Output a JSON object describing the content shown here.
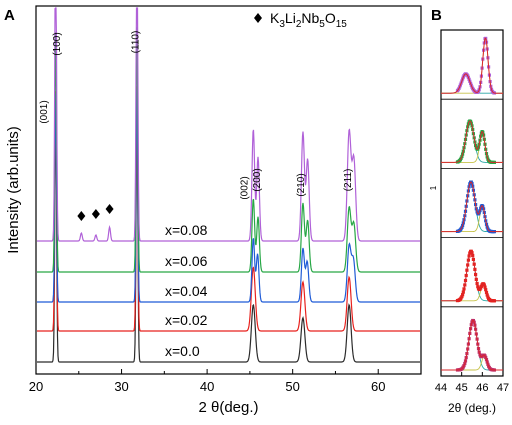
{
  "chart_data": [
    {
      "panel": "A",
      "type": "line",
      "xlabel": "2 θ(deg.)",
      "ylabel": "Intensity (arb.units)",
      "xlim": [
        20,
        65
      ],
      "xticks": [
        "20",
        "30",
        "40",
        "50",
        "60"
      ],
      "legend": {
        "marker": "♦",
        "text": "K3Li2Nb5O15"
      },
      "peak_positions": [
        22.3,
        31.8,
        45.4,
        51.2,
        56.6
      ],
      "peak_labels": [
        {
          "text": "(001)",
          "x": 21.3
        },
        {
          "text": "(100)",
          "x": 22.8
        },
        {
          "text": "(110)",
          "x": 32.0
        },
        {
          "text": "(002)",
          "x": 44.7
        },
        {
          "text": "(200)",
          "x": 46.2
        },
        {
          "text": "(210)",
          "x": 51.3
        },
        {
          "text": "(211)",
          "x": 56.8
        }
      ],
      "impurity_markers_x": [
        25.3,
        27.0,
        28.6
      ],
      "series": [
        {
          "name": "x=0.0",
          "color": "#2b2b2b",
          "relative_heights": [
            1.0,
            1.0,
            0.22,
            0.17,
            0.22
          ]
        },
        {
          "name": "x=0.02",
          "color": "#e8211d",
          "relative_heights": [
            1.0,
            1.0,
            0.26,
            0.2,
            0.22
          ]
        },
        {
          "name": "x=0.04",
          "color": "#1f5bd6",
          "relative_heights": [
            1.0,
            1.0,
            0.3,
            0.25,
            0.26
          ]
        },
        {
          "name": "x=0.06",
          "color": "#27a745",
          "relative_heights": [
            1.0,
            1.0,
            0.3,
            0.28,
            0.26
          ]
        },
        {
          "name": "x=0.08",
          "color": "#b061d8",
          "relative_heights": [
            1.0,
            1.0,
            0.35,
            0.34,
            0.34
          ]
        }
      ]
    },
    {
      "panel": "B",
      "type": "scatter",
      "xlabel": "2θ (deg.)",
      "xlim": [
        44,
        47
      ],
      "xticks": [
        "44",
        "45",
        "46",
        "47"
      ],
      "side_label": "1",
      "fit_colors": [
        "#c7c24a",
        "#2aa6a6"
      ],
      "subpanels": [
        {
          "color": "#b061d8",
          "peak1": 45.2,
          "peak2": 46.15
        },
        {
          "color": "#27a745",
          "peak1": 45.4,
          "peak2": 46.0
        },
        {
          "color": "#1f5bd6",
          "peak1": 45.45,
          "peak2": 46.0
        },
        {
          "color": "#e8211d",
          "peak1": 45.45,
          "peak2": 46.05
        },
        {
          "color": "#c0306a",
          "peak1": 45.55,
          "peak2": 46.1
        }
      ]
    }
  ],
  "labels": {
    "panel_a": "A",
    "panel_b": "B"
  }
}
